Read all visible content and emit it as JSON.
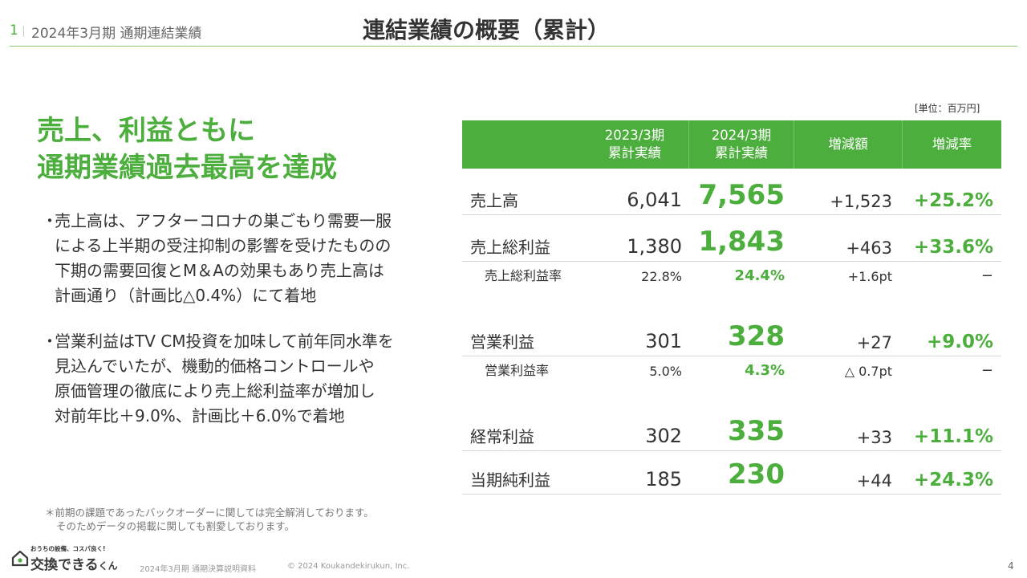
{
  "header": {
    "page_index": "1",
    "subtitle": "2024年3月期 通期連結業績",
    "title": "連結業績の概要（累計）"
  },
  "headline": {
    "line1": "売上、利益ともに",
    "line2": "通期業績過去最高を達成"
  },
  "bullets": [
    {
      "dot": "・",
      "lines": [
        "売上高は、アフターコロナの巣ごもり需要一服",
        "による上半期の受注抑制の影響を受けたものの",
        "下期の需要回復とM＆Aの効果もあり売上高は",
        "計画通り（計画比△0.4%）にて着地"
      ]
    },
    {
      "dot": "・",
      "lines": [
        "営業利益はTV CM投資を加味して前年同水準を",
        "見込んでいたが、機動的価格コントロールや",
        "原価管理の徹底により売上総利益率が増加し",
        "対前年比＋9.0%、計画比＋6.0%で着地"
      ]
    }
  ],
  "footnote": {
    "line1": "＊前期の課題であったバックオーダーに関しては完全解消しております。",
    "line2": "そのためデータの掲載に関しても割愛しております。"
  },
  "table": {
    "unit": "[単位：百万円]",
    "headers": {
      "prev": [
        "2023/3期",
        "累計実績"
      ],
      "cur": [
        "2024/3期",
        "累計実績"
      ],
      "change": "増減額",
      "rate": "増減率"
    },
    "rows": [
      {
        "label": "売上高",
        "prev": "6,041",
        "cur": "7,565",
        "change": "+1,523",
        "rate": "+25.2%"
      },
      {
        "label": "売上総利益",
        "prev": "1,380",
        "cur": "1,843",
        "change": "+463",
        "rate": "+33.6%"
      },
      {
        "label": "売上総利益率",
        "prev": "22.8%",
        "cur": "24.4%",
        "change": "+1.6pt",
        "rate": "−"
      },
      {
        "label": "営業利益",
        "prev": "301",
        "cur": "328",
        "change": "+27",
        "rate": "+9.0%"
      },
      {
        "label": "営業利益率",
        "prev": "5.0%",
        "cur": "4.3%",
        "change": "△ 0.7pt",
        "rate": "−"
      },
      {
        "label": "経常利益",
        "prev": "302",
        "cur": "335",
        "change": "+33",
        "rate": "+11.1%"
      },
      {
        "label": "当期純利益",
        "prev": "185",
        "cur": "230",
        "change": "+44",
        "rate": "+24.3%"
      }
    ]
  },
  "logo": {
    "tagline": "おうちの設備、コスパ良く!",
    "name": "交換できる",
    "suffix": "くん"
  },
  "footer": {
    "document": "2024年3月期 通期決算説明資料",
    "copyright": "© 2024 Koukandekirukun, Inc.",
    "page_number": "4"
  },
  "colors": {
    "accent": "#4cae3c",
    "text": "#333333"
  }
}
